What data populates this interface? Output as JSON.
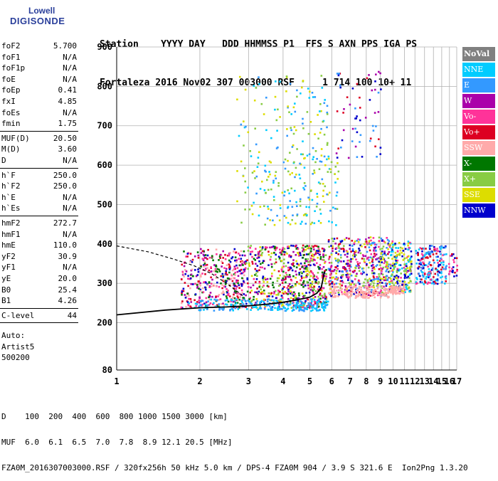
{
  "logo": {
    "line1": "Lowell",
    "line2": "DIGISONDE"
  },
  "header": {
    "labels": "Station    YYYY DAY   DDD HHMMSS P1  FFS S AXN PPS IGA PS",
    "values": "Fortaleza 2016 Nov02 307 003000 RSF     1 714 100 10+ 11"
  },
  "params": {
    "group1": [
      {
        "k": "foF2",
        "v": "5.700"
      },
      {
        "k": "foF1",
        "v": "N/A"
      },
      {
        "k": "foF1p",
        "v": "N/A"
      },
      {
        "k": "foE",
        "v": "N/A"
      },
      {
        "k": "foEp",
        "v": "0.41"
      },
      {
        "k": "fxI",
        "v": "4.85"
      },
      {
        "k": "foEs",
        "v": "N/A"
      },
      {
        "k": "fmin",
        "v": "1.75"
      }
    ],
    "group2": [
      {
        "k": "MUF(D)",
        "v": "20.50"
      },
      {
        "k": "M(D)",
        "v": "3.60"
      },
      {
        "k": "D",
        "v": "N/A"
      }
    ],
    "group3": [
      {
        "k": "h`F",
        "v": "250.0"
      },
      {
        "k": "h`F2",
        "v": "250.0"
      },
      {
        "k": "h`E",
        "v": "N/A"
      },
      {
        "k": "h`Es",
        "v": "N/A"
      }
    ],
    "group4": [
      {
        "k": "hmF2",
        "v": "272.7"
      },
      {
        "k": "hmF1",
        "v": "N/A"
      },
      {
        "k": "hmE",
        "v": "110.0"
      },
      {
        "k": "yF2",
        "v": "30.9"
      },
      {
        "k": "yF1",
        "v": "N/A"
      },
      {
        "k": "yE",
        "v": "20.0"
      },
      {
        "k": "B0",
        "v": "25.4"
      },
      {
        "k": "B1",
        "v": "4.26"
      }
    ],
    "group5": [
      {
        "k": "C-level",
        "v": "44"
      }
    ],
    "auto": [
      "Auto:",
      "Artist5",
      "500200"
    ]
  },
  "legend": [
    {
      "label": "NoVal",
      "color": "#808080"
    },
    {
      "label": "NNE",
      "color": "#00ccff"
    },
    {
      "label": "E",
      "color": "#3399ff"
    },
    {
      "label": "W",
      "color": "#aa00aa"
    },
    {
      "label": "Vo-",
      "color": "#ff3399"
    },
    {
      "label": "Vo+",
      "color": "#dd0022"
    },
    {
      "label": "SSW",
      "color": "#ffaaaa"
    },
    {
      "label": "X-",
      "color": "#007700"
    },
    {
      "label": "X+",
      "color": "#88cc44"
    },
    {
      "label": "SSE",
      "color": "#dddd00"
    },
    {
      "label": "NNW",
      "color": "#0000cc"
    }
  ],
  "footer": {
    "d_row": "D    100  200  400  600  800 1000 1500 3000 [km]",
    "muf_row": "MUF  6.0  6.1  6.5  7.0  7.8  8.9 12.1 20.5 [MHz]",
    "info_row": "FZA0M_2016307003000.RSF / 320fx256h 50 kHz 5.0 km / DPS-4 FZA0M 904 / 3.9 S 321.6 E  Ion2Png 1.3.20"
  },
  "chart_data": {
    "type": "scatter",
    "xlim": [
      1,
      17
    ],
    "ylim": [
      80,
      900
    ],
    "x_ticks": [
      1,
      2,
      3,
      4,
      5,
      6,
      7,
      8,
      9,
      10,
      11,
      12,
      13,
      14,
      15,
      16,
      17
    ],
    "y_ticks": [
      80,
      200,
      300,
      400,
      500,
      600,
      700,
      800,
      900
    ],
    "grid": true,
    "x_scale": "log",
    "trace": {
      "name": "trace",
      "color": "#000000",
      "points": [
        [
          1.0,
          220
        ],
        [
          1.5,
          232
        ],
        [
          2.0,
          238
        ],
        [
          2.5,
          240
        ],
        [
          3.0,
          243
        ],
        [
          3.5,
          247
        ],
        [
          4.0,
          252
        ],
        [
          4.5,
          258
        ],
        [
          5.0,
          265
        ],
        [
          5.3,
          275
        ],
        [
          5.5,
          290
        ],
        [
          5.65,
          330
        ]
      ]
    },
    "dashed_profile": {
      "color": "#000000",
      "points": [
        [
          1.0,
          395
        ],
        [
          1.3,
          380
        ],
        [
          1.6,
          362
        ],
        [
          1.9,
          345
        ],
        [
          2.2,
          325
        ],
        [
          2.5,
          300
        ],
        [
          2.7,
          282
        ],
        [
          2.9,
          265
        ]
      ]
    },
    "clusters": [
      {
        "x": [
          1.7,
          2.9
        ],
        "y": [
          240,
          390
        ],
        "colors": [
          "#ff3399",
          "#dd0022",
          "#0000cc",
          "#007700",
          "#aa00aa",
          "#ffaaaa"
        ],
        "count": 420
      },
      {
        "x": [
          2.9,
          5.7
        ],
        "y": [
          240,
          400
        ],
        "colors": [
          "#ff3399",
          "#dd0022",
          "#0000cc",
          "#007700",
          "#aa00aa",
          "#88cc44",
          "#dddd00"
        ],
        "count": 650
      },
      {
        "x": [
          1.8,
          5.8
        ],
        "y": [
          232,
          262
        ],
        "colors": [
          "#3399ff",
          "#00ccff"
        ],
        "count": 220
      },
      {
        "x": [
          5.8,
          9.6
        ],
        "y": [
          270,
          420
        ],
        "colors": [
          "#dddd00",
          "#88cc44",
          "#ff3399",
          "#dd0022",
          "#0000cc",
          "#3399ff",
          "#aa00aa"
        ],
        "count": 520
      },
      {
        "x": [
          5.8,
          9.6
        ],
        "y": [
          265,
          295
        ],
        "colors": [
          "#ffaaaa"
        ],
        "count": 160
      },
      {
        "x": [
          9.6,
          11.6
        ],
        "y": [
          280,
          410
        ],
        "colors": [
          "#dddd00",
          "#88cc44",
          "#ff3399",
          "#00ccff",
          "#0000cc"
        ],
        "count": 220
      },
      {
        "x": [
          9.7,
          10.9
        ],
        "y": [
          275,
          295
        ],
        "colors": [
          "#ffaaaa"
        ],
        "count": 60
      },
      {
        "x": [
          12.0,
          15.5
        ],
        "y": [
          300,
          400
        ],
        "colors": [
          "#0000cc",
          "#3399ff",
          "#00ccff",
          "#ff3399",
          "#dd0022"
        ],
        "count": 200
      },
      {
        "x": [
          2.7,
          6.3
        ],
        "y": [
          450,
          620
        ],
        "colors": [
          "#3399ff",
          "#00ccff",
          "#dddd00",
          "#88cc44"
        ],
        "count": 180
      },
      {
        "x": [
          2.7,
          5.8
        ],
        "y": [
          620,
          830
        ],
        "colors": [
          "#3399ff",
          "#dddd00",
          "#88cc44",
          "#00ccff"
        ],
        "count": 110
      },
      {
        "x": [
          6.2,
          9.0
        ],
        "y": [
          620,
          840
        ],
        "colors": [
          "#3399ff",
          "#0000cc",
          "#aa00aa",
          "#dd0022"
        ],
        "count": 60
      },
      {
        "x": [
          15.8,
          17.0
        ],
        "y": [
          320,
          380
        ],
        "colors": [
          "#ff3399",
          "#dd0022",
          "#0000cc"
        ],
        "count": 25
      }
    ]
  }
}
